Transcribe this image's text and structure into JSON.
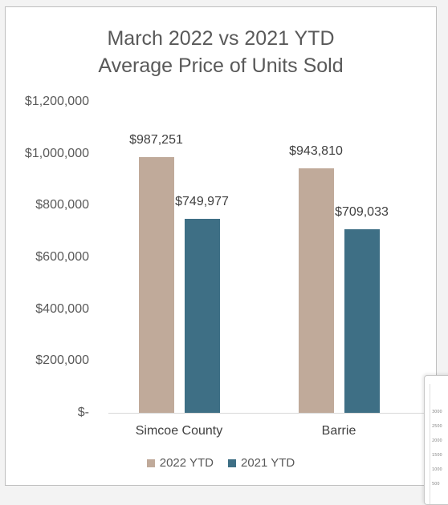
{
  "chart_data": {
    "type": "bar",
    "title_line1": "March 2022 vs 2021 YTD",
    "title_line2": "Average Price of Units Sold",
    "categories": [
      "Simcoe County",
      "Barrie"
    ],
    "series": [
      {
        "name": "2022 YTD",
        "values": [
          987251,
          943810
        ],
        "labels": [
          "$987,251",
          "$943,810"
        ],
        "color": "#c0aa9a"
      },
      {
        "name": "2021 YTD",
        "values": [
          749977,
          709033
        ],
        "labels": [
          "$749,977",
          "$709,033"
        ],
        "color": "#3e6f85"
      }
    ],
    "ylim": [
      0,
      1200000
    ],
    "y_ticks": [
      {
        "value": 1200000,
        "label": "$1,200,000"
      },
      {
        "value": 1000000,
        "label": "$1,000,000"
      },
      {
        "value": 800000,
        "label": "$800,000"
      },
      {
        "value": 600000,
        "label": "$600,000"
      },
      {
        "value": 400000,
        "label": "$400,000"
      },
      {
        "value": 200000,
        "label": "$200,000"
      },
      {
        "value": 0,
        "label": "$-"
      }
    ],
    "grid": false,
    "legend": "bottom"
  },
  "thumbnail": {
    "ticks": [
      "3000",
      "2500",
      "2000",
      "1500",
      "1000",
      "500"
    ]
  }
}
